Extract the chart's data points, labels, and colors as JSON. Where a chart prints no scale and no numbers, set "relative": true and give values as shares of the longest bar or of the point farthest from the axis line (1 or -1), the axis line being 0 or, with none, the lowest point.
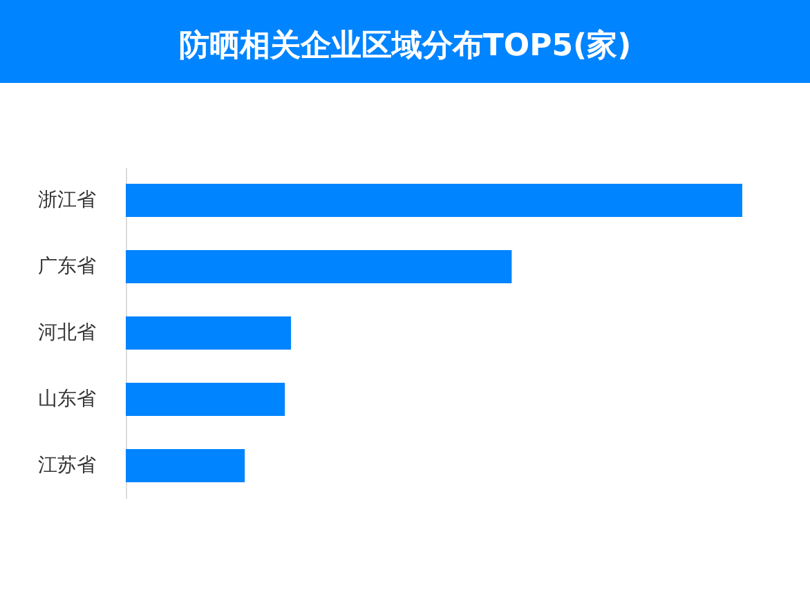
{
  "chart_data": {
    "type": "bar",
    "orientation": "horizontal",
    "relative": true,
    "title": "防晒相关企业区域分布TOP5(家)",
    "categories": [
      "浙江省",
      "广东省",
      "河北省",
      "山东省",
      "江苏省"
    ],
    "values": [
      1,
      0.626,
      0.268,
      0.258,
      0.193
    ],
    "color": "#0084ff"
  }
}
